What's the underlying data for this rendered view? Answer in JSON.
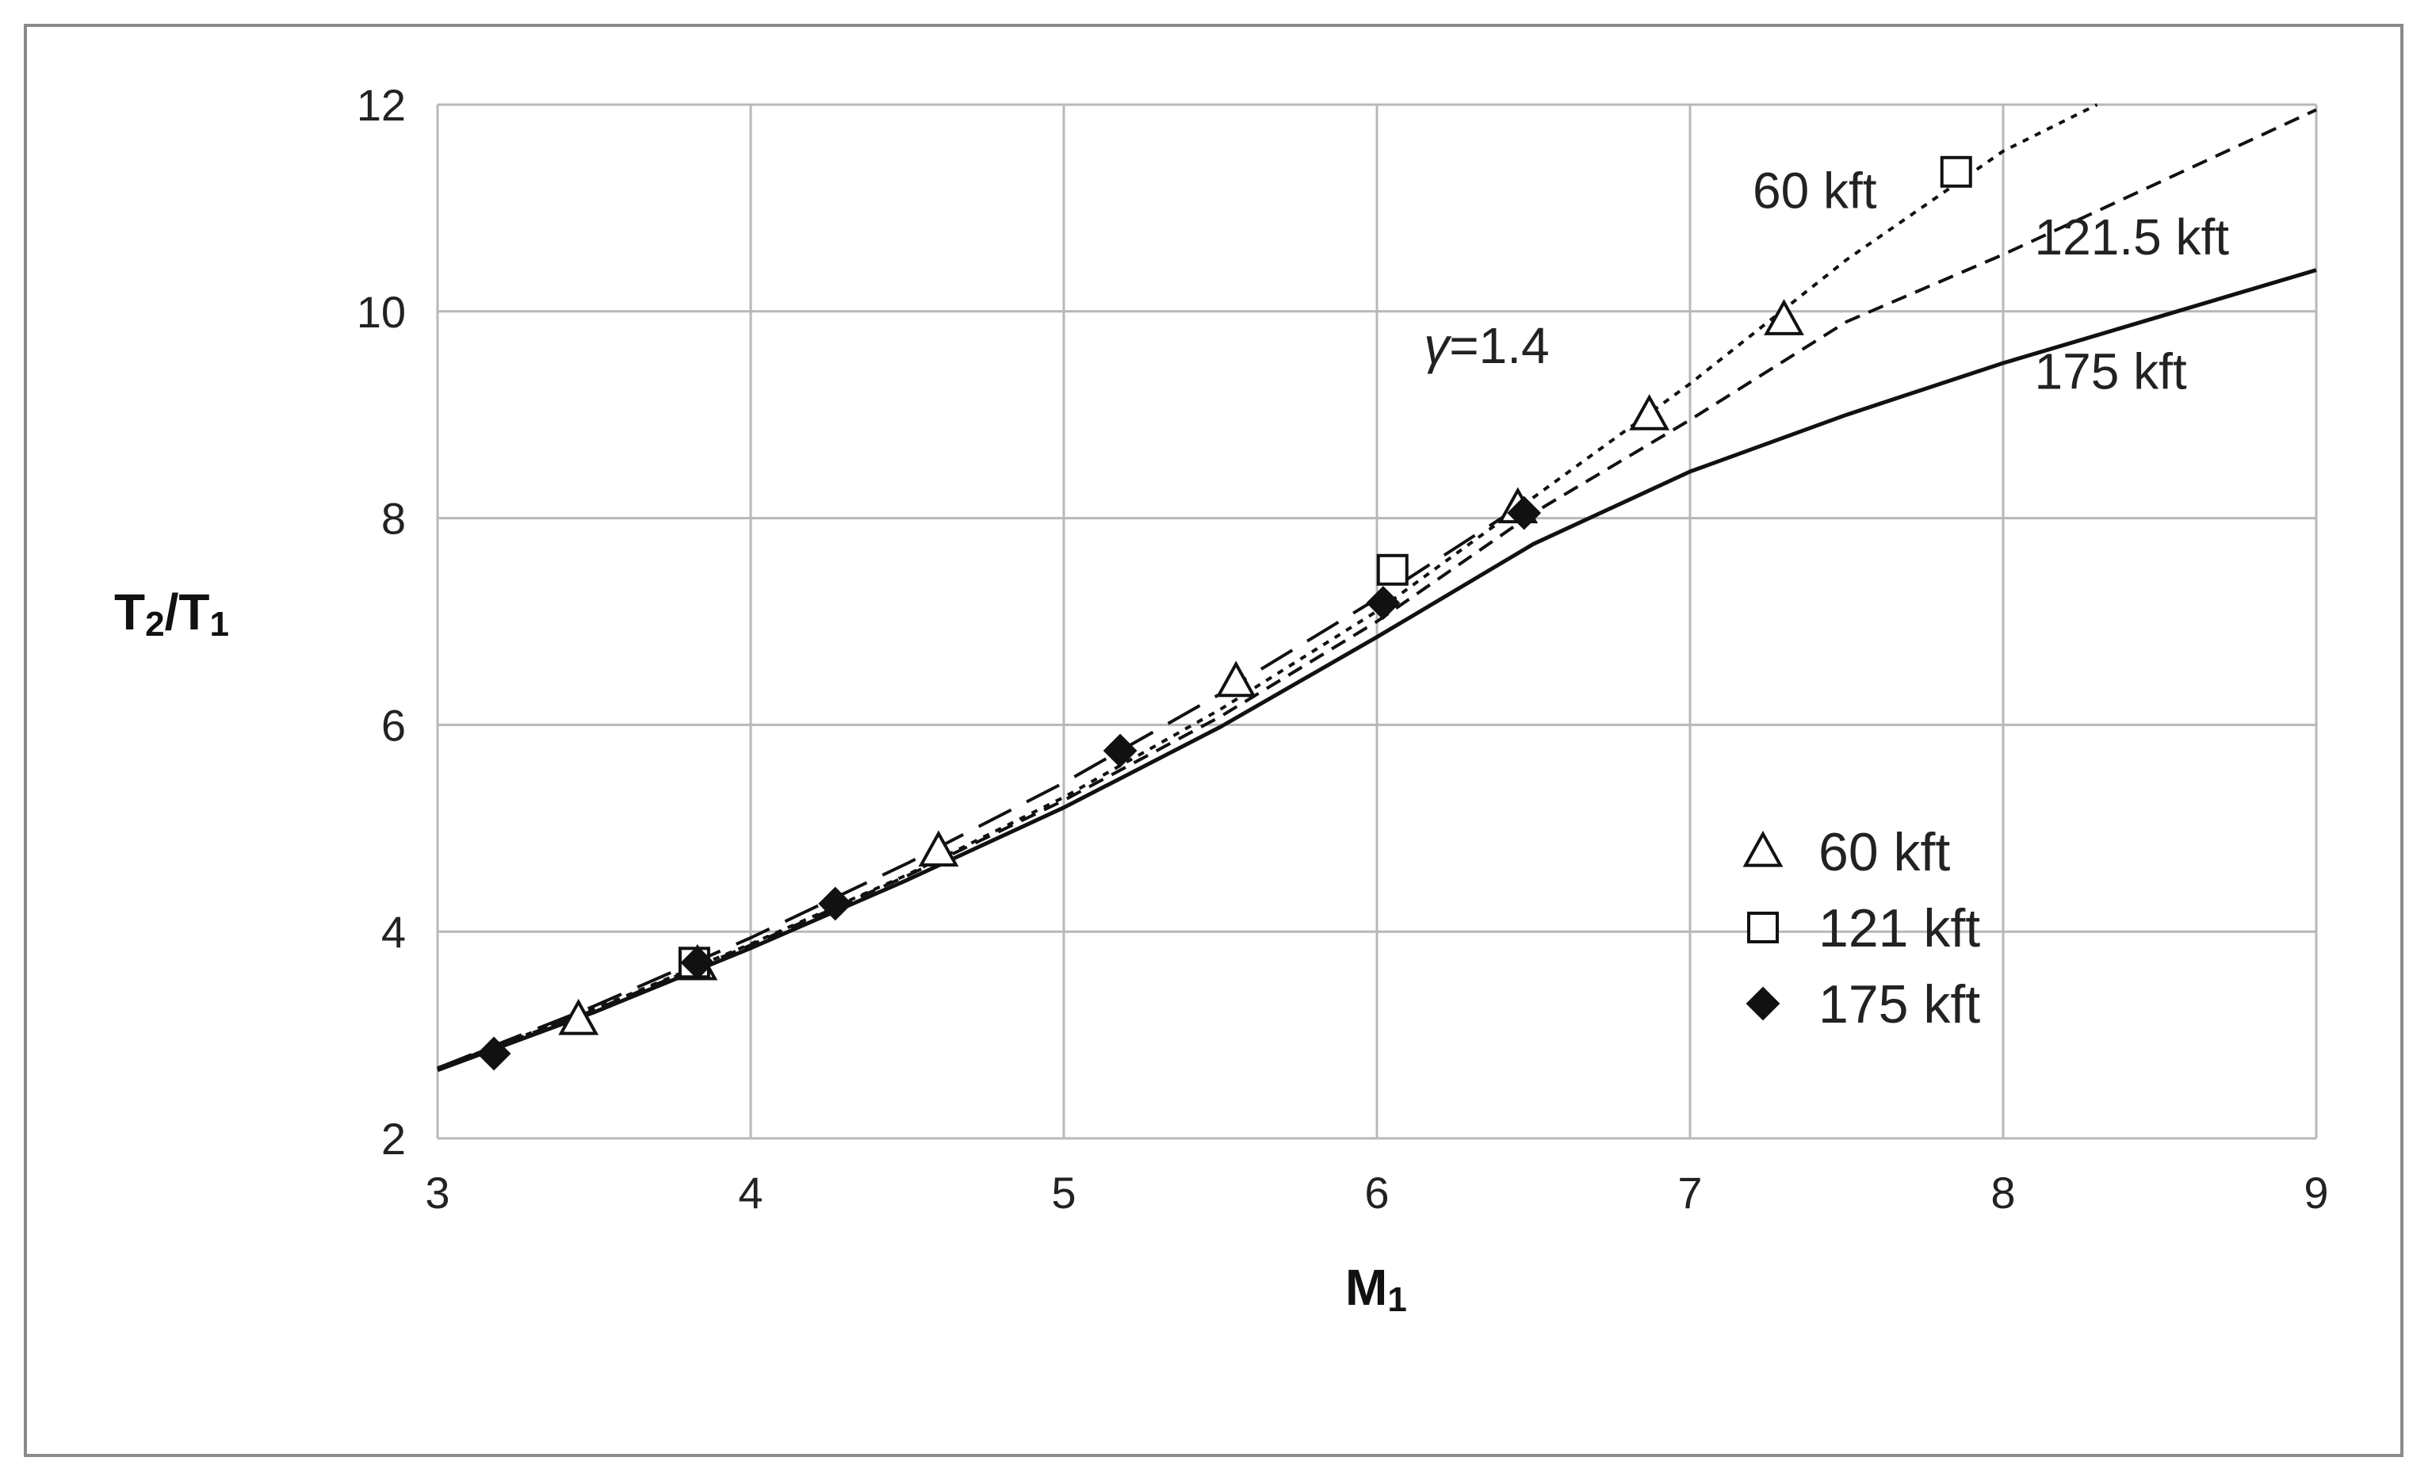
{
  "chart_data": {
    "type": "line",
    "title": "",
    "xlabel": "M",
    "xlabel_sub": "1",
    "ylabel_parts": [
      "T",
      "2",
      "/T",
      "1"
    ],
    "xlim": [
      3,
      9
    ],
    "ylim": [
      2,
      12
    ],
    "xticks": [
      "3",
      "4",
      "5",
      "6",
      "7",
      "8",
      "9"
    ],
    "yticks": [
      "2",
      "4",
      "6",
      "8",
      "10",
      "12"
    ],
    "grid": true,
    "lines": [
      {
        "label": "γ=1.4",
        "style": "long-dash",
        "x": [
          3.0,
          3.5,
          4.0,
          4.5,
          5.0,
          5.5,
          6.0,
          6.5
        ],
        "y": [
          2.68,
          3.28,
          3.94,
          4.66,
          5.44,
          6.3,
          7.22,
          8.2
        ]
      },
      {
        "label": "60 kft",
        "style": "dotted",
        "x": [
          3.0,
          3.5,
          4.0,
          4.5,
          5.0,
          5.5,
          6.0,
          6.5,
          7.0,
          7.5,
          8.0,
          8.3
        ],
        "y": [
          2.68,
          3.25,
          3.88,
          4.55,
          5.3,
          6.15,
          7.1,
          8.2,
          9.3,
          10.5,
          11.55,
          12.0
        ]
      },
      {
        "label": "121.5 kft",
        "style": "short-dash",
        "x": [
          3.0,
          3.5,
          4.0,
          4.5,
          5.0,
          5.5,
          6.0,
          6.5,
          7.0,
          7.5,
          8.0,
          8.5,
          9.0
        ],
        "y": [
          2.68,
          3.24,
          3.87,
          4.54,
          5.27,
          6.08,
          7.0,
          8.05,
          8.95,
          9.9,
          10.55,
          11.25,
          11.95
        ]
      },
      {
        "label": "175 kft",
        "style": "solid",
        "x": [
          3.0,
          3.5,
          4.0,
          4.5,
          5.0,
          5.5,
          6.0,
          6.5,
          7.0,
          7.5,
          8.0,
          8.5,
          9.0
        ],
        "y": [
          2.66,
          3.22,
          3.84,
          4.5,
          5.2,
          5.98,
          6.85,
          7.75,
          8.45,
          9.0,
          9.5,
          9.95,
          10.4
        ]
      }
    ],
    "line_labels": [
      {
        "text": "60 kft",
        "x": 7.2,
        "y": 11.0
      },
      {
        "text": "121.5 kft",
        "x": 8.1,
        "y": 10.55
      },
      {
        "text": "175 kft",
        "x": 8.1,
        "y": 9.25
      }
    ],
    "gamma_label": {
      "sym": "γ",
      "text": "=1.4",
      "x": 6.15,
      "y": 9.5
    },
    "series": [
      {
        "name": "60 kft",
        "marker": "triangle-open",
        "x": [
          3.45,
          3.83,
          4.6,
          5.55,
          6.45,
          6.87,
          7.3
        ],
        "y": [
          3.15,
          3.68,
          4.78,
          6.42,
          8.1,
          9.0,
          9.92
        ]
      },
      {
        "name": "121 kft",
        "marker": "square-open",
        "x": [
          3.82,
          6.05,
          7.85
        ],
        "y": [
          3.7,
          7.5,
          11.35
        ]
      },
      {
        "name": "175 kft",
        "marker": "diamond-filled",
        "x": [
          3.18,
          3.83,
          4.27,
          5.18,
          6.02,
          6.47
        ],
        "y": [
          2.82,
          3.7,
          4.27,
          5.75,
          7.18,
          8.05
        ]
      }
    ],
    "legend_position": "bottom-right inside plot"
  }
}
